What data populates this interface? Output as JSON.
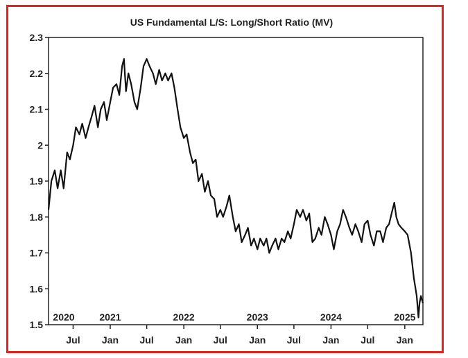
{
  "colors": {
    "frame": "#e3221c",
    "line": "#111111",
    "axis": "#222222",
    "background": "#ffffff"
  },
  "chart_data": {
    "type": "line",
    "title": "US Fundamental L/S: Long/Short Ratio (MV)",
    "xlabel": "",
    "ylabel": "",
    "ylim": [
      1.5,
      2.3
    ],
    "xlim": [
      "2020-03-01",
      "2025-04-01"
    ],
    "grid": false,
    "legend": "none",
    "y_ticks": [
      "1.5",
      "1.6",
      "1.7",
      "1.8",
      "1.9",
      "2",
      "2.1",
      "2.2",
      "2.3"
    ],
    "x_month_ticks": [
      {
        "date": "2020-07-01",
        "label": "Jul"
      },
      {
        "date": "2021-01-01",
        "label": "Jan"
      },
      {
        "date": "2021-07-01",
        "label": "Jul"
      },
      {
        "date": "2022-01-01",
        "label": "Jan"
      },
      {
        "date": "2022-07-01",
        "label": "Jul"
      },
      {
        "date": "2023-01-01",
        "label": "Jan"
      },
      {
        "date": "2023-07-01",
        "label": "Jul"
      },
      {
        "date": "2024-01-01",
        "label": "Jan"
      },
      {
        "date": "2024-07-01",
        "label": "Jul"
      },
      {
        "date": "2025-01-01",
        "label": "Jan"
      }
    ],
    "x_year_labels": [
      {
        "date": "2020-01-01",
        "label": "2020"
      },
      {
        "date": "2021-01-01",
        "label": "2021"
      },
      {
        "date": "2022-01-01",
        "label": "2022"
      },
      {
        "date": "2023-01-01",
        "label": "2023"
      },
      {
        "date": "2024-01-01",
        "label": "2024"
      },
      {
        "date": "2025-01-01",
        "label": "2025"
      }
    ],
    "series": [
      {
        "points": [
          [
            "2020-03-01",
            1.82
          ],
          [
            "2020-03-15",
            1.9
          ],
          [
            "2020-04-01",
            1.93
          ],
          [
            "2020-04-15",
            1.88
          ],
          [
            "2020-05-01",
            1.93
          ],
          [
            "2020-05-15",
            1.88
          ],
          [
            "2020-06-01",
            1.98
          ],
          [
            "2020-06-15",
            1.96
          ],
          [
            "2020-07-01",
            2.0
          ],
          [
            "2020-07-15",
            2.05
          ],
          [
            "2020-08-01",
            2.03
          ],
          [
            "2020-08-15",
            2.06
          ],
          [
            "2020-09-01",
            2.02
          ],
          [
            "2020-09-15",
            2.05
          ],
          [
            "2020-10-01",
            2.08
          ],
          [
            "2020-10-15",
            2.11
          ],
          [
            "2020-11-01",
            2.05
          ],
          [
            "2020-11-15",
            2.1
          ],
          [
            "2020-12-01",
            2.12
          ],
          [
            "2020-12-15",
            2.07
          ],
          [
            "2021-01-01",
            2.12
          ],
          [
            "2021-01-15",
            2.16
          ],
          [
            "2021-02-01",
            2.17
          ],
          [
            "2021-02-15",
            2.14
          ],
          [
            "2021-03-01",
            2.22
          ],
          [
            "2021-03-10",
            2.24
          ],
          [
            "2021-03-20",
            2.15
          ],
          [
            "2021-04-01",
            2.2
          ],
          [
            "2021-04-15",
            2.17
          ],
          [
            "2021-05-01",
            2.12
          ],
          [
            "2021-05-15",
            2.1
          ],
          [
            "2021-06-01",
            2.16
          ],
          [
            "2021-06-15",
            2.22
          ],
          [
            "2021-07-01",
            2.24
          ],
          [
            "2021-07-15",
            2.22
          ],
          [
            "2021-08-01",
            2.2
          ],
          [
            "2021-08-15",
            2.17
          ],
          [
            "2021-09-01",
            2.21
          ],
          [
            "2021-09-15",
            2.18
          ],
          [
            "2021-10-01",
            2.2
          ],
          [
            "2021-10-15",
            2.18
          ],
          [
            "2021-11-01",
            2.2
          ],
          [
            "2021-11-15",
            2.16
          ],
          [
            "2021-12-01",
            2.1
          ],
          [
            "2021-12-15",
            2.05
          ],
          [
            "2022-01-01",
            2.02
          ],
          [
            "2022-01-15",
            2.03
          ],
          [
            "2022-02-01",
            1.98
          ],
          [
            "2022-02-15",
            1.95
          ],
          [
            "2022-03-01",
            1.96
          ],
          [
            "2022-03-15",
            1.9
          ],
          [
            "2022-04-01",
            1.92
          ],
          [
            "2022-04-15",
            1.87
          ],
          [
            "2022-05-01",
            1.9
          ],
          [
            "2022-05-15",
            1.86
          ],
          [
            "2022-06-01",
            1.85
          ],
          [
            "2022-06-15",
            1.8
          ],
          [
            "2022-07-01",
            1.82
          ],
          [
            "2022-07-15",
            1.8
          ],
          [
            "2022-08-01",
            1.83
          ],
          [
            "2022-08-15",
            1.86
          ],
          [
            "2022-09-01",
            1.8
          ],
          [
            "2022-09-15",
            1.76
          ],
          [
            "2022-10-01",
            1.78
          ],
          [
            "2022-10-15",
            1.73
          ],
          [
            "2022-11-01",
            1.75
          ],
          [
            "2022-11-15",
            1.77
          ],
          [
            "2022-12-01",
            1.72
          ],
          [
            "2022-12-15",
            1.74
          ],
          [
            "2023-01-01",
            1.71
          ],
          [
            "2023-01-15",
            1.74
          ],
          [
            "2023-02-01",
            1.72
          ],
          [
            "2023-02-15",
            1.74
          ],
          [
            "2023-03-01",
            1.7
          ],
          [
            "2023-03-15",
            1.72
          ],
          [
            "2023-04-01",
            1.74
          ],
          [
            "2023-04-15",
            1.71
          ],
          [
            "2023-05-01",
            1.74
          ],
          [
            "2023-05-15",
            1.73
          ],
          [
            "2023-06-01",
            1.76
          ],
          [
            "2023-06-15",
            1.74
          ],
          [
            "2023-07-01",
            1.78
          ],
          [
            "2023-07-15",
            1.82
          ],
          [
            "2023-08-01",
            1.8
          ],
          [
            "2023-08-15",
            1.82
          ],
          [
            "2023-09-01",
            1.79
          ],
          [
            "2023-09-15",
            1.81
          ],
          [
            "2023-10-01",
            1.73
          ],
          [
            "2023-10-15",
            1.74
          ],
          [
            "2023-11-01",
            1.77
          ],
          [
            "2023-11-15",
            1.75
          ],
          [
            "2023-12-01",
            1.8
          ],
          [
            "2023-12-15",
            1.78
          ],
          [
            "2024-01-01",
            1.75
          ],
          [
            "2024-01-15",
            1.71
          ],
          [
            "2024-02-01",
            1.76
          ],
          [
            "2024-02-15",
            1.78
          ],
          [
            "2024-03-01",
            1.82
          ],
          [
            "2024-03-15",
            1.8
          ],
          [
            "2024-04-01",
            1.77
          ],
          [
            "2024-04-15",
            1.75
          ],
          [
            "2024-05-01",
            1.78
          ],
          [
            "2024-05-15",
            1.76
          ],
          [
            "2024-06-01",
            1.73
          ],
          [
            "2024-06-15",
            1.78
          ],
          [
            "2024-07-01",
            1.79
          ],
          [
            "2024-07-15",
            1.75
          ],
          [
            "2024-08-01",
            1.72
          ],
          [
            "2024-08-15",
            1.76
          ],
          [
            "2024-09-01",
            1.76
          ],
          [
            "2024-09-15",
            1.73
          ],
          [
            "2024-10-01",
            1.77
          ],
          [
            "2024-10-15",
            1.78
          ],
          [
            "2024-11-01",
            1.82
          ],
          [
            "2024-11-10",
            1.84
          ],
          [
            "2024-11-20",
            1.8
          ],
          [
            "2024-12-01",
            1.78
          ],
          [
            "2024-12-15",
            1.77
          ],
          [
            "2025-01-01",
            1.76
          ],
          [
            "2025-01-15",
            1.75
          ],
          [
            "2025-02-01",
            1.7
          ],
          [
            "2025-02-15",
            1.63
          ],
          [
            "2025-03-01",
            1.58
          ],
          [
            "2025-03-10",
            1.52
          ],
          [
            "2025-03-15",
            1.56
          ],
          [
            "2025-03-22",
            1.58
          ],
          [
            "2025-04-01",
            1.56
          ]
        ]
      }
    ]
  }
}
